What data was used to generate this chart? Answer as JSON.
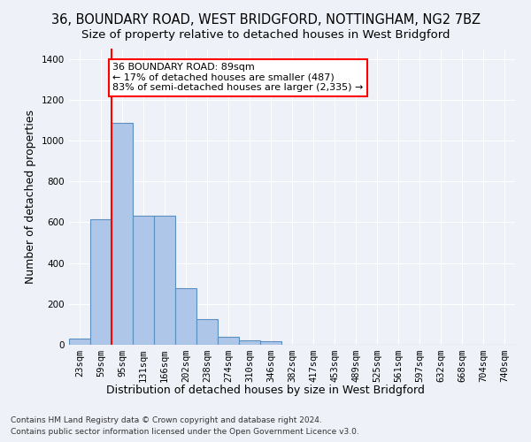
{
  "title": "36, BOUNDARY ROAD, WEST BRIDGFORD, NOTTINGHAM, NG2 7BZ",
  "subtitle": "Size of property relative to detached houses in West Bridgford",
  "xlabel": "Distribution of detached houses by size in West Bridgford",
  "ylabel": "Number of detached properties",
  "footnote1": "Contains HM Land Registry data © Crown copyright and database right 2024.",
  "footnote2": "Contains public sector information licensed under the Open Government Licence v3.0.",
  "bin_labels": [
    "23sqm",
    "59sqm",
    "95sqm",
    "131sqm",
    "166sqm",
    "202sqm",
    "238sqm",
    "274sqm",
    "310sqm",
    "346sqm",
    "382sqm",
    "417sqm",
    "453sqm",
    "489sqm",
    "525sqm",
    "561sqm",
    "597sqm",
    "632sqm",
    "668sqm",
    "704sqm",
    "740sqm"
  ],
  "bar_values": [
    30,
    615,
    1085,
    630,
    630,
    275,
    125,
    40,
    22,
    18,
    0,
    0,
    0,
    0,
    0,
    0,
    0,
    0,
    0,
    0,
    0
  ],
  "bar_color": "#aec6e8",
  "bar_edge_color": "#5a8fc0",
  "vline_color": "red",
  "annotation_text": "36 BOUNDARY ROAD: 89sqm\n← 17% of detached houses are smaller (487)\n83% of semi-detached houses are larger (2,335) →",
  "annotation_box_color": "white",
  "annotation_box_edge_color": "red",
  "ylim": [
    0,
    1450
  ],
  "yticks": [
    0,
    200,
    400,
    600,
    800,
    1000,
    1200,
    1400
  ],
  "background_color": "#eef2f8",
  "grid_color": "#ffffff",
  "title_fontsize": 10.5,
  "subtitle_fontsize": 9.5,
  "axis_label_fontsize": 9,
  "tick_fontsize": 7.5,
  "annotation_fontsize": 8,
  "footnote_fontsize": 6.5
}
